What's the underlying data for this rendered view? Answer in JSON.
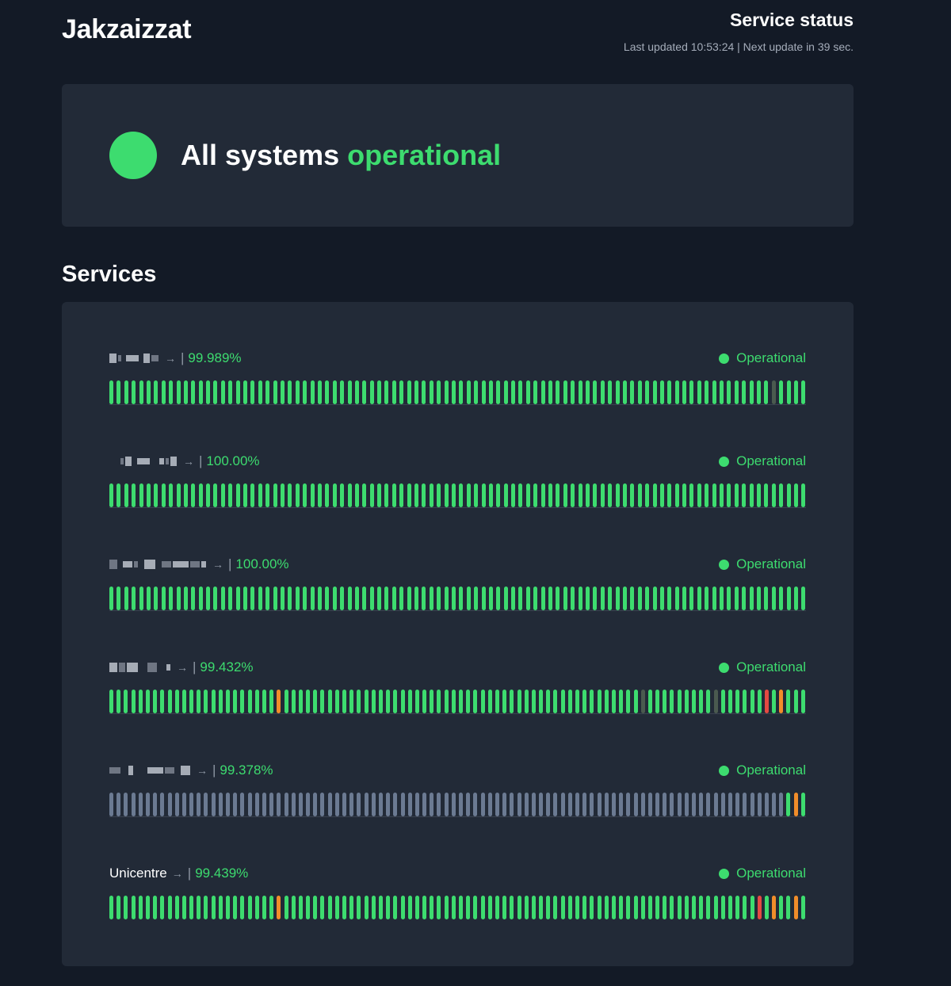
{
  "header": {
    "brand": "Jakzaizzat",
    "status_title": "Service status",
    "updated_text": "Last updated 10:53:24 | Next update in 39 sec."
  },
  "banner": {
    "prefix": "All systems",
    "status_word": "operational",
    "color": "#3ddc6f"
  },
  "services_heading": "Services",
  "colors": {
    "up": "#3ddc6f",
    "partial": "#f18d2a",
    "down": "#e44a42",
    "nodata": "#6b7a92",
    "unknown": "#4a5a4f"
  },
  "bar_legend": {
    "u": "up",
    "o": "partial",
    "r": "down",
    "n": "nodata",
    "g": "unknown"
  },
  "services": [
    {
      "name": "",
      "name_redacted": true,
      "uptime": "99.989%",
      "status": "Operational",
      "bars": "uuuuuuuuuuuuuuuuuuuuuuuuuuuuuuuuuuuuuuuuuuuuuuuuuuuuuuuuuuuuuuuuuuuuuuuuuuuuuuuuuuuuuuuuuguuuu"
    },
    {
      "name": "",
      "name_redacted": true,
      "uptime": "100.00%",
      "status": "Operational",
      "bars": "uuuuuuuuuuuuuuuuuuuuuuuuuuuuuuuuuuuuuuuuuuuuuuuuuuuuuuuuuuuuuuuuuuuuuuuuuuuuuuuuuuuuuuuuuuuuuu"
    },
    {
      "name": "",
      "name_redacted": true,
      "uptime": "100.00%",
      "status": "Operational",
      "bars": "uuuuuuuuuuuuuuuuuuuuuuuuuuuuuuuuuuuuuuuuuuuuuuuuuuuuuuuuuuuuuuuuuuuuuuuuuuuuuuuuuuuuuuuuuuuuuu"
    },
    {
      "name": "",
      "name_redacted": true,
      "uptime": "99.432%",
      "status": "Operational",
      "bars": "uuuuuuuuuuuuuuuuuuuuuuuouuuuuuuuuuuuuuuuuuuuuuuuuuuuuuuuuuuuuuuuuuuuuuuuuguuuuuuuuuguuuuuuruouuu"
    },
    {
      "name": "",
      "name_redacted": true,
      "uptime": "99.378%",
      "status": "Operational",
      "bars": "nnnnnnnnnnnnnnnnnnnnnnnnnnnnnnnnnnnnnnnnnnnnnnnnnnnnnnnnnnnnnnnnnnnnnnnnnnnnnnnnnnnnnnnnnnnnnuou"
    },
    {
      "name": "Unicentre",
      "name_redacted": false,
      "uptime": "99.439%",
      "status": "Operational",
      "bars": "uuuuuuuuuuuuuuuuuuuuuuuouuuuuuuuuuuuuuuuuuuuuuuuuuuuuuuuuuuuuuuuuuuuuuuuuuuuuuuuuuuuuuuuuruouuou"
    }
  ]
}
